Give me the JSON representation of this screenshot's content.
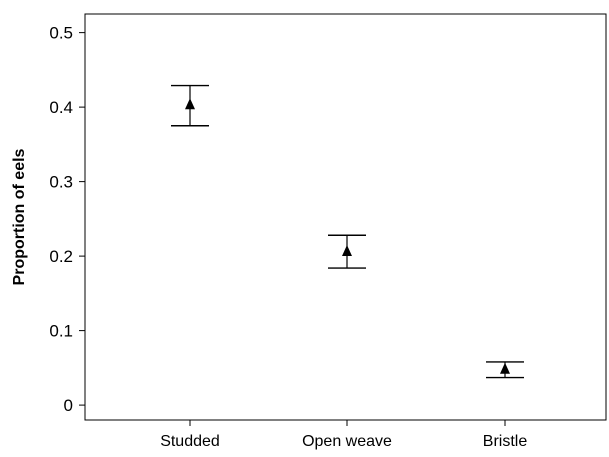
{
  "chart_data": {
    "type": "scatter",
    "title": "",
    "xlabel": "",
    "ylabel": "Proportion of eels",
    "categories": [
      "Studded",
      "Open weave",
      "Bristle"
    ],
    "series": [
      {
        "marker": "triangle",
        "values": [
          0.403,
          0.206,
          0.048
        ],
        "error_low": [
          0.375,
          0.184,
          0.037
        ],
        "error_high": [
          0.429,
          0.228,
          0.058
        ]
      }
    ],
    "yticks": [
      0,
      0.1,
      0.2,
      0.3,
      0.4,
      0.5
    ],
    "ytick_labels": [
      "0",
      "0.1",
      "0.2",
      "0.3",
      "0.4",
      "0.5"
    ],
    "ylim": [
      -0.02,
      0.525
    ],
    "grid": false,
    "legend": "none",
    "colors": {
      "marker": "#000000",
      "axis": "#000000",
      "background": "#ffffff"
    }
  }
}
